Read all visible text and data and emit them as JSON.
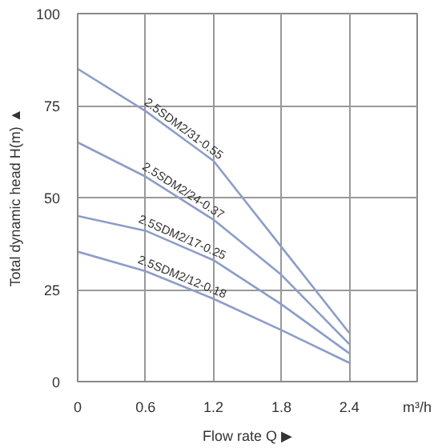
{
  "chart_data": {
    "type": "line",
    "xlabel": "Flow rate Q ▶",
    "ylabel": "Total dynamic head H(m) ▲",
    "x": [
      0,
      0.6,
      1.2,
      1.8,
      2.4
    ],
    "series": [
      {
        "name": "2.5SDM2/31-0.55",
        "color": "#8d9dc9",
        "values": [
          85,
          73.5,
          60,
          36.6,
          13.2
        ]
      },
      {
        "name": "2.5SDM2/24-0.37",
        "color": "#8d9dc9",
        "values": [
          65,
          55.7,
          44,
          29,
          10.2
        ]
      },
      {
        "name": "2.5SDM2/17-0.25",
        "color": "#8d9dc9",
        "values": [
          45,
          41,
          33,
          21,
          7.7
        ]
      },
      {
        "name": "2.5SDM2/12-0.18",
        "color": "#8d9dc9",
        "values": [
          35.3,
          30,
          22.5,
          14,
          5.1
        ]
      }
    ],
    "xlim": [
      0,
      3.0
    ],
    "ylim": [
      0,
      100
    ],
    "xticks": [
      0,
      0.6,
      1.2,
      1.8,
      2.4
    ],
    "yticks": [
      0,
      25,
      50,
      75,
      100
    ],
    "annotations": [
      "m³/h"
    ],
    "grid": true,
    "marker": "none",
    "line_style": "solid"
  }
}
